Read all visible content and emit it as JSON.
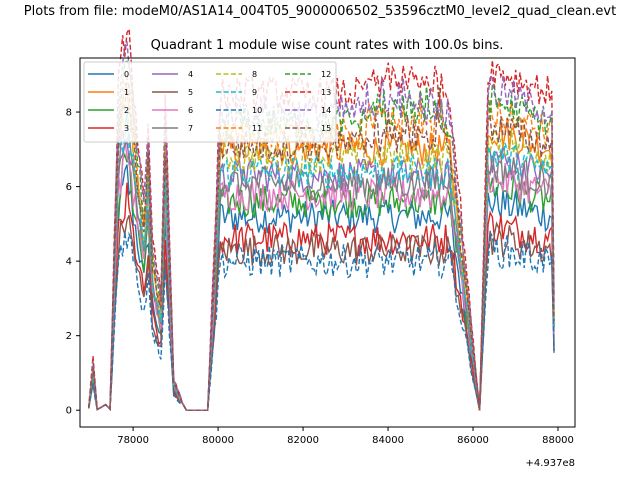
{
  "chart_data": {
    "type": "line",
    "suptitle": "Plots from file: modeM0/AS1A14_004T05_9000006502_53596cztM0_level2_quad_clean.evt",
    "title": "Quadrant 1 module wise count rates with 100.0s bins.",
    "xlabel": "",
    "ylabel": "",
    "x_offset_label": "+4.937e8",
    "xlim": [
      76750,
      88400
    ],
    "ylim": [
      -0.45,
      9.45
    ],
    "x_ticks": [
      {
        "value": 78000,
        "label": "78000"
      },
      {
        "value": 80000,
        "label": "80000"
      },
      {
        "value": 82000,
        "label": "82000"
      },
      {
        "value": 84000,
        "label": "84000"
      },
      {
        "value": 86000,
        "label": "86000"
      },
      {
        "value": 88000,
        "label": "88000"
      }
    ],
    "y_ticks": [
      {
        "value": 0,
        "label": "0"
      },
      {
        "value": 2,
        "label": "2"
      },
      {
        "value": 4,
        "label": "4"
      },
      {
        "value": 6,
        "label": "6"
      },
      {
        "value": 8,
        "label": "8"
      }
    ],
    "grid": false,
    "legend_position": "upper-left",
    "legend_columns": 4,
    "envelope": {
      "x_start": 76955,
      "x_end": 87920,
      "segments": [
        {
          "x": 76955,
          "v": 0.05
        },
        {
          "x": 77055,
          "v": 1.0
        },
        {
          "x": 77155,
          "v": 0.02
        },
        {
          "x": 77355,
          "v": 0.15
        },
        {
          "x": 77455,
          "v": 0.03
        },
        {
          "x": 77655,
          "v": 6.2
        },
        {
          "x": 77855,
          "v": 7.3
        },
        {
          "x": 78255,
          "v": 4.0
        },
        {
          "x": 78355,
          "v": 5.5
        },
        {
          "x": 78455,
          "v": 3.3
        },
        {
          "x": 78655,
          "v": 2.2
        },
        {
          "x": 78755,
          "v": 6.0
        },
        {
          "x": 78955,
          "v": 0.6
        },
        {
          "x": 79255,
          "v": 0.0
        },
        {
          "x": 79755,
          "v": 0.0
        },
        {
          "x": 80055,
          "v": 6.0
        },
        {
          "x": 85455,
          "v": 6.0
        },
        {
          "x": 86155,
          "v": 0.0
        },
        {
          "x": 86355,
          "v": 6.5
        },
        {
          "x": 87855,
          "v": 6.0
        },
        {
          "x": 87920,
          "v": 0.9
        }
      ]
    },
    "series": [
      {
        "name": "0",
        "color": "#1f77b4",
        "dash": "solid",
        "level": 5.2
      },
      {
        "name": "1",
        "color": "#ff7f0e",
        "dash": "solid",
        "level": 7.0
      },
      {
        "name": "2",
        "color": "#2ca02c",
        "dash": "solid",
        "level": 5.6
      },
      {
        "name": "3",
        "color": "#d62728",
        "dash": "solid",
        "level": 4.6
      },
      {
        "name": "4",
        "color": "#9467bd",
        "dash": "solid",
        "level": 6.3
      },
      {
        "name": "5",
        "color": "#8c564b",
        "dash": "solid",
        "level": 4.3
      },
      {
        "name": "6",
        "color": "#e377c2",
        "dash": "solid",
        "level": 5.8
      },
      {
        "name": "7",
        "color": "#7f7f7f",
        "dash": "solid",
        "level": 6.1
      },
      {
        "name": "8",
        "color": "#bcbd22",
        "dash": "dashed",
        "level": 6.8
      },
      {
        "name": "9",
        "color": "#17becf",
        "dash": "dashed",
        "level": 6.4
      },
      {
        "name": "10",
        "color": "#1f77b4",
        "dash": "dashed",
        "level": 4.0
      },
      {
        "name": "11",
        "color": "#ff7f0e",
        "dash": "dashed",
        "level": 7.4
      },
      {
        "name": "12",
        "color": "#2ca02c",
        "dash": "dashed",
        "level": 7.7
      },
      {
        "name": "13",
        "color": "#d62728",
        "dash": "dashed",
        "level": 8.5
      },
      {
        "name": "14",
        "color": "#9467bd",
        "dash": "dashed",
        "level": 8.0
      },
      {
        "name": "15",
        "color": "#8c564b",
        "dash": "dashed",
        "level": 7.1
      }
    ]
  }
}
